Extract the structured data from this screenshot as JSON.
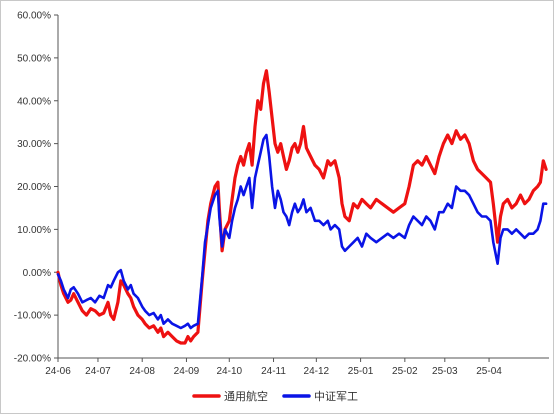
{
  "chart_data": {
    "type": "line",
    "title": "",
    "xlabel": "",
    "ylabel": "",
    "ylim": [
      -0.2,
      0.6
    ],
    "yticks": [
      "-20.00%",
      "-10.00%",
      "0.00%",
      "10.00%",
      "20.00%",
      "30.00%",
      "40.00%",
      "50.00%",
      "60.00%"
    ],
    "yvalues": [
      -0.2,
      -0.1,
      0.0,
      0.1,
      0.2,
      0.3,
      0.4,
      0.5,
      0.6
    ],
    "xticks": [
      "24-06",
      "24-07",
      "24-08",
      "24-09",
      "24-10",
      "24-11",
      "24-12",
      "25-01",
      "25-02",
      "25-03",
      "25-04"
    ],
    "xlim": [
      "2024-06-03",
      "2025-05-13"
    ],
    "grid": false,
    "legend_position": "bottom",
    "series": [
      {
        "name": "通用航空",
        "color": "#ee1111",
        "points": [
          [
            "2024-06-03",
            0.0
          ],
          [
            "2024-06-05",
            -0.03
          ],
          [
            "2024-06-07",
            -0.05
          ],
          [
            "2024-06-10",
            -0.07
          ],
          [
            "2024-06-12",
            -0.065
          ],
          [
            "2024-06-14",
            -0.05
          ],
          [
            "2024-06-17",
            -0.07
          ],
          [
            "2024-06-20",
            -0.09
          ],
          [
            "2024-06-23",
            -0.1
          ],
          [
            "2024-06-26",
            -0.085
          ],
          [
            "2024-06-29",
            -0.09
          ],
          [
            "2024-07-02",
            -0.1
          ],
          [
            "2024-07-05",
            -0.095
          ],
          [
            "2024-07-08",
            -0.07
          ],
          [
            "2024-07-10",
            -0.1
          ],
          [
            "2024-07-12",
            -0.11
          ],
          [
            "2024-07-15",
            -0.07
          ],
          [
            "2024-07-17",
            -0.02
          ],
          [
            "2024-07-19",
            -0.03
          ],
          [
            "2024-07-22",
            -0.05
          ],
          [
            "2024-07-24",
            -0.06
          ],
          [
            "2024-07-26",
            -0.08
          ],
          [
            "2024-07-29",
            -0.1
          ],
          [
            "2024-08-01",
            -0.11
          ],
          [
            "2024-08-03",
            -0.12
          ],
          [
            "2024-08-06",
            -0.13
          ],
          [
            "2024-08-09",
            -0.125
          ],
          [
            "2024-08-12",
            -0.14
          ],
          [
            "2024-08-14",
            -0.13
          ],
          [
            "2024-08-16",
            -0.15
          ],
          [
            "2024-08-19",
            -0.14
          ],
          [
            "2024-08-22",
            -0.15
          ],
          [
            "2024-08-25",
            -0.16
          ],
          [
            "2024-08-28",
            -0.165
          ],
          [
            "2024-08-31",
            -0.165
          ],
          [
            "2024-09-02",
            -0.15
          ],
          [
            "2024-09-04",
            -0.16
          ],
          [
            "2024-09-06",
            -0.15
          ],
          [
            "2024-09-09",
            -0.14
          ],
          [
            "2024-09-12",
            -0.02
          ],
          [
            "2024-09-14",
            0.05
          ],
          [
            "2024-09-16",
            0.12
          ],
          [
            "2024-09-18",
            0.16
          ],
          [
            "2024-09-21",
            0.2
          ],
          [
            "2024-09-23",
            0.21
          ],
          [
            "2024-09-24",
            0.15
          ],
          [
            "2024-09-26",
            0.05
          ],
          [
            "2024-09-28",
            0.1
          ],
          [
            "2024-10-01",
            0.12
          ],
          [
            "2024-10-03",
            0.17
          ],
          [
            "2024-10-05",
            0.22
          ],
          [
            "2024-10-07",
            0.25
          ],
          [
            "2024-10-09",
            0.27
          ],
          [
            "2024-10-11",
            0.25
          ],
          [
            "2024-10-13",
            0.28
          ],
          [
            "2024-10-15",
            0.3
          ],
          [
            "2024-10-17",
            0.25
          ],
          [
            "2024-10-19",
            0.34
          ],
          [
            "2024-10-21",
            0.4
          ],
          [
            "2024-10-23",
            0.38
          ],
          [
            "2024-10-25",
            0.44
          ],
          [
            "2024-10-27",
            0.47
          ],
          [
            "2024-10-29",
            0.42
          ],
          [
            "2024-10-31",
            0.36
          ],
          [
            "2024-11-02",
            0.3
          ],
          [
            "2024-11-04",
            0.28
          ],
          [
            "2024-11-06",
            0.3
          ],
          [
            "2024-11-08",
            0.27
          ],
          [
            "2024-11-10",
            0.24
          ],
          [
            "2024-11-12",
            0.26
          ],
          [
            "2024-11-14",
            0.29
          ],
          [
            "2024-11-16",
            0.3
          ],
          [
            "2024-11-18",
            0.28
          ],
          [
            "2024-11-20",
            0.3
          ],
          [
            "2024-11-22",
            0.34
          ],
          [
            "2024-11-24",
            0.29
          ],
          [
            "2024-11-27",
            0.27
          ],
          [
            "2024-11-30",
            0.25
          ],
          [
            "2024-12-03",
            0.24
          ],
          [
            "2024-12-06",
            0.22
          ],
          [
            "2024-12-09",
            0.26
          ],
          [
            "2024-12-11",
            0.25
          ],
          [
            "2024-12-14",
            0.26
          ],
          [
            "2024-12-17",
            0.22
          ],
          [
            "2024-12-19",
            0.16
          ],
          [
            "2024-12-21",
            0.13
          ],
          [
            "2024-12-24",
            0.12
          ],
          [
            "2024-12-27",
            0.16
          ],
          [
            "2024-12-30",
            0.15
          ],
          [
            "2025-01-02",
            0.17
          ],
          [
            "2025-01-05",
            0.16
          ],
          [
            "2025-01-08",
            0.15
          ],
          [
            "2025-01-12",
            0.17
          ],
          [
            "2025-01-16",
            0.16
          ],
          [
            "2025-01-20",
            0.15
          ],
          [
            "2025-01-24",
            0.14
          ],
          [
            "2025-01-28",
            0.15
          ],
          [
            "2025-02-01",
            0.16
          ],
          [
            "2025-02-04",
            0.2
          ],
          [
            "2025-02-07",
            0.25
          ],
          [
            "2025-02-10",
            0.26
          ],
          [
            "2025-02-13",
            0.25
          ],
          [
            "2025-02-16",
            0.27
          ],
          [
            "2025-02-19",
            0.25
          ],
          [
            "2025-02-22",
            0.23
          ],
          [
            "2025-02-25",
            0.27
          ],
          [
            "2025-02-28",
            0.3
          ],
          [
            "2025-03-03",
            0.32
          ],
          [
            "2025-03-06",
            0.3
          ],
          [
            "2025-03-09",
            0.33
          ],
          [
            "2025-03-12",
            0.31
          ],
          [
            "2025-03-15",
            0.32
          ],
          [
            "2025-03-18",
            0.3
          ],
          [
            "2025-03-21",
            0.26
          ],
          [
            "2025-03-24",
            0.24
          ],
          [
            "2025-03-27",
            0.23
          ],
          [
            "2025-03-30",
            0.22
          ],
          [
            "2025-04-02",
            0.21
          ],
          [
            "2025-04-04",
            0.16
          ],
          [
            "2025-04-07",
            0.07
          ],
          [
            "2025-04-09",
            0.13
          ],
          [
            "2025-04-11",
            0.16
          ],
          [
            "2025-04-14",
            0.17
          ],
          [
            "2025-04-17",
            0.15
          ],
          [
            "2025-04-20",
            0.16
          ],
          [
            "2025-04-23",
            0.18
          ],
          [
            "2025-04-26",
            0.16
          ],
          [
            "2025-04-29",
            0.17
          ],
          [
            "2025-05-02",
            0.19
          ],
          [
            "2025-05-05",
            0.2
          ],
          [
            "2025-05-07",
            0.21
          ],
          [
            "2025-05-09",
            0.26
          ],
          [
            "2025-05-11",
            0.24
          ]
        ]
      },
      {
        "name": "中证军工",
        "color": "#0a14e6",
        "points": [
          [
            "2024-06-03",
            -0.005
          ],
          [
            "2024-06-05",
            -0.02
          ],
          [
            "2024-06-07",
            -0.04
          ],
          [
            "2024-06-10",
            -0.06
          ],
          [
            "2024-06-12",
            -0.04
          ],
          [
            "2024-06-14",
            -0.035
          ],
          [
            "2024-06-17",
            -0.05
          ],
          [
            "2024-06-20",
            -0.07
          ],
          [
            "2024-06-23",
            -0.065
          ],
          [
            "2024-06-26",
            -0.06
          ],
          [
            "2024-06-29",
            -0.07
          ],
          [
            "2024-07-02",
            -0.055
          ],
          [
            "2024-07-05",
            -0.06
          ],
          [
            "2024-07-08",
            -0.03
          ],
          [
            "2024-07-10",
            -0.035
          ],
          [
            "2024-07-12",
            -0.02
          ],
          [
            "2024-07-15",
            0.0
          ],
          [
            "2024-07-17",
            0.005
          ],
          [
            "2024-07-19",
            -0.02
          ],
          [
            "2024-07-22",
            -0.04
          ],
          [
            "2024-07-24",
            -0.03
          ],
          [
            "2024-07-26",
            -0.05
          ],
          [
            "2024-07-29",
            -0.06
          ],
          [
            "2024-08-01",
            -0.08
          ],
          [
            "2024-08-03",
            -0.09
          ],
          [
            "2024-08-06",
            -0.1
          ],
          [
            "2024-08-09",
            -0.095
          ],
          [
            "2024-08-12",
            -0.11
          ],
          [
            "2024-08-14",
            -0.1
          ],
          [
            "2024-08-16",
            -0.12
          ],
          [
            "2024-08-19",
            -0.11
          ],
          [
            "2024-08-22",
            -0.12
          ],
          [
            "2024-08-25",
            -0.125
          ],
          [
            "2024-08-28",
            -0.13
          ],
          [
            "2024-08-31",
            -0.125
          ],
          [
            "2024-09-02",
            -0.12
          ],
          [
            "2024-09-04",
            -0.13
          ],
          [
            "2024-09-06",
            -0.125
          ],
          [
            "2024-09-09",
            -0.12
          ],
          [
            "2024-09-12",
            -0.01
          ],
          [
            "2024-09-14",
            0.07
          ],
          [
            "2024-09-16",
            0.11
          ],
          [
            "2024-09-18",
            0.15
          ],
          [
            "2024-09-21",
            0.18
          ],
          [
            "2024-09-23",
            0.19
          ],
          [
            "2024-09-24",
            0.13
          ],
          [
            "2024-09-26",
            0.06
          ],
          [
            "2024-09-28",
            0.1
          ],
          [
            "2024-10-01",
            0.08
          ],
          [
            "2024-10-03",
            0.12
          ],
          [
            "2024-10-05",
            0.15
          ],
          [
            "2024-10-07",
            0.17
          ],
          [
            "2024-10-09",
            0.2
          ],
          [
            "2024-10-11",
            0.18
          ],
          [
            "2024-10-13",
            0.2
          ],
          [
            "2024-10-15",
            0.22
          ],
          [
            "2024-10-17",
            0.15
          ],
          [
            "2024-10-19",
            0.22
          ],
          [
            "2024-10-21",
            0.25
          ],
          [
            "2024-10-23",
            0.28
          ],
          [
            "2024-10-25",
            0.31
          ],
          [
            "2024-10-27",
            0.32
          ],
          [
            "2024-10-29",
            0.27
          ],
          [
            "2024-10-31",
            0.2
          ],
          [
            "2024-11-02",
            0.15
          ],
          [
            "2024-11-04",
            0.19
          ],
          [
            "2024-11-06",
            0.17
          ],
          [
            "2024-11-08",
            0.14
          ],
          [
            "2024-11-10",
            0.13
          ],
          [
            "2024-11-12",
            0.11
          ],
          [
            "2024-11-14",
            0.14
          ],
          [
            "2024-11-16",
            0.16
          ],
          [
            "2024-11-18",
            0.14
          ],
          [
            "2024-11-20",
            0.15
          ],
          [
            "2024-11-22",
            0.17
          ],
          [
            "2024-11-24",
            0.14
          ],
          [
            "2024-11-27",
            0.15
          ],
          [
            "2024-11-30",
            0.12
          ],
          [
            "2024-12-03",
            0.12
          ],
          [
            "2024-12-06",
            0.11
          ],
          [
            "2024-12-09",
            0.12
          ],
          [
            "2024-12-11",
            0.1
          ],
          [
            "2024-12-14",
            0.11
          ],
          [
            "2024-12-17",
            0.1
          ],
          [
            "2024-12-19",
            0.06
          ],
          [
            "2024-12-21",
            0.05
          ],
          [
            "2024-12-24",
            0.06
          ],
          [
            "2024-12-27",
            0.07
          ],
          [
            "2024-12-30",
            0.08
          ],
          [
            "2025-01-02",
            0.06
          ],
          [
            "2025-01-05",
            0.09
          ],
          [
            "2025-01-08",
            0.08
          ],
          [
            "2025-01-12",
            0.07
          ],
          [
            "2025-01-16",
            0.08
          ],
          [
            "2025-01-20",
            0.09
          ],
          [
            "2025-01-24",
            0.08
          ],
          [
            "2025-01-28",
            0.09
          ],
          [
            "2025-02-01",
            0.08
          ],
          [
            "2025-02-04",
            0.11
          ],
          [
            "2025-02-07",
            0.13
          ],
          [
            "2025-02-10",
            0.12
          ],
          [
            "2025-02-13",
            0.11
          ],
          [
            "2025-02-16",
            0.13
          ],
          [
            "2025-02-19",
            0.12
          ],
          [
            "2025-02-22",
            0.1
          ],
          [
            "2025-02-25",
            0.14
          ],
          [
            "2025-02-28",
            0.14
          ],
          [
            "2025-03-03",
            0.16
          ],
          [
            "2025-03-06",
            0.15
          ],
          [
            "2025-03-09",
            0.2
          ],
          [
            "2025-03-12",
            0.19
          ],
          [
            "2025-03-15",
            0.19
          ],
          [
            "2025-03-18",
            0.18
          ],
          [
            "2025-03-21",
            0.16
          ],
          [
            "2025-03-24",
            0.14
          ],
          [
            "2025-03-27",
            0.13
          ],
          [
            "2025-03-30",
            0.13
          ],
          [
            "2025-04-02",
            0.12
          ],
          [
            "2025-04-04",
            0.07
          ],
          [
            "2025-04-07",
            0.02
          ],
          [
            "2025-04-09",
            0.08
          ],
          [
            "2025-04-11",
            0.1
          ],
          [
            "2025-04-14",
            0.1
          ],
          [
            "2025-04-17",
            0.09
          ],
          [
            "2025-04-20",
            0.1
          ],
          [
            "2025-04-23",
            0.09
          ],
          [
            "2025-04-26",
            0.08
          ],
          [
            "2025-04-29",
            0.09
          ],
          [
            "2025-05-02",
            0.09
          ],
          [
            "2025-05-05",
            0.1
          ],
          [
            "2025-05-07",
            0.12
          ],
          [
            "2025-05-09",
            0.16
          ],
          [
            "2025-05-11",
            0.16
          ]
        ]
      }
    ]
  }
}
